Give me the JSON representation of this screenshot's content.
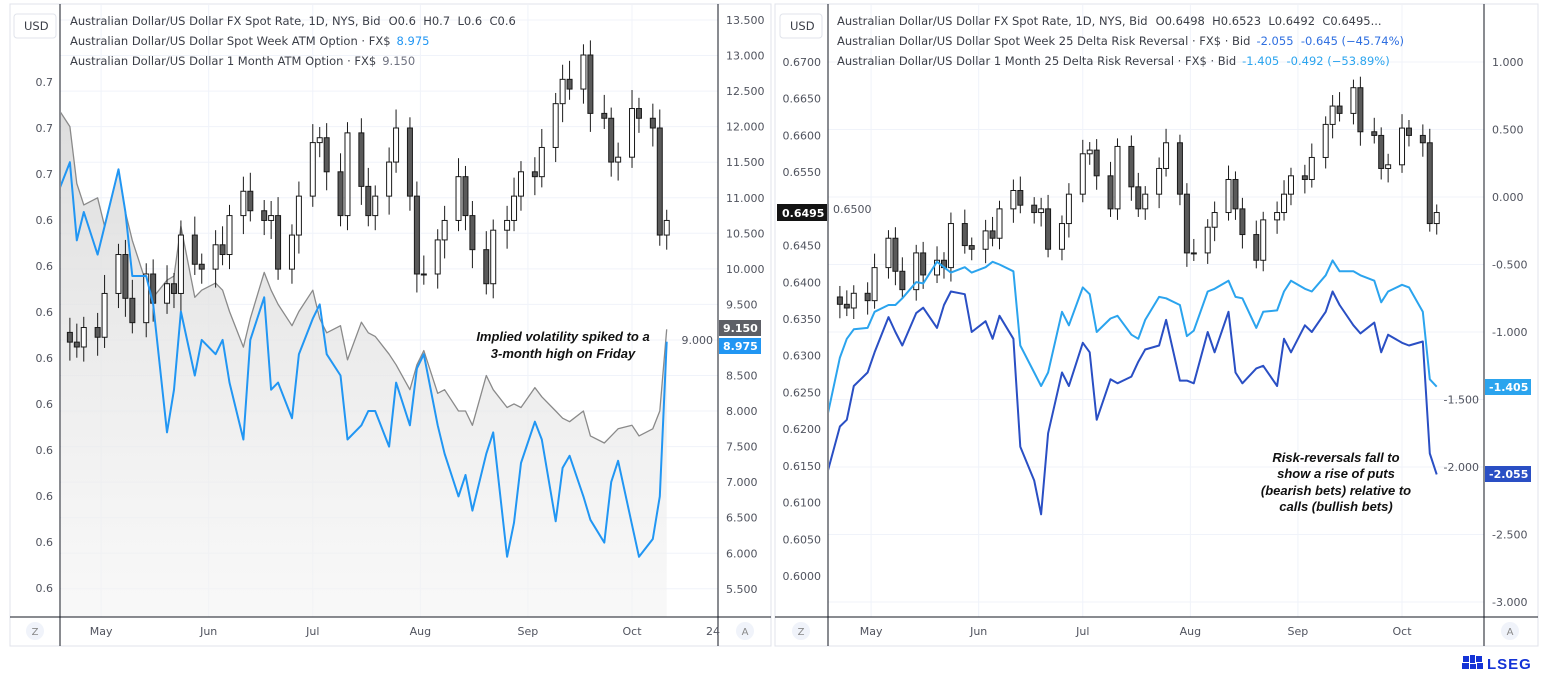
{
  "colors": {
    "week_atm": "#2196f3",
    "month_atm": "#8a8a8a",
    "week_rr": "#2a4fc4",
    "month_rr": "#2ba4ee",
    "candle_up": "#ffffff",
    "candle_down": "#5a5a5a",
    "brand": "#1433d6"
  },
  "left_panel": {
    "currency_button": "USD",
    "legend": [
      {
        "name": "Australian Dollar/US Dollar FX Spot Rate, 1D, NYS, Bid",
        "values": "O0.6  H0.7  L0.6  C0.6"
      },
      {
        "name": "Australian Dollar/US Dollar Spot Week ATM Option · FX$",
        "values": "8.975"
      },
      {
        "name": "Australian Dollar/US Dollar 1 Month ATM Option · FX$",
        "values": "9.150"
      }
    ],
    "left_axis_labels": [
      "0.7",
      "0.7",
      "0.7",
      "0.6",
      "0.6",
      "0.6",
      "0.6",
      "0.6",
      "0.6",
      "0.6",
      "0.6",
      "0.6"
    ],
    "right_axis_labels": [
      "13.500",
      "13.000",
      "12.500",
      "12.000",
      "11.500",
      "11.000",
      "10.500",
      "10.000",
      "9.500",
      "9.000",
      "8.500",
      "8.000",
      "7.500",
      "7.000",
      "6.500",
      "6.000",
      "5.500"
    ],
    "price_tags": {
      "month_atm": "9.150",
      "week_atm": "8.975"
    },
    "annotation": [
      "Implied volatility spiked to a",
      "3-month high on Friday"
    ],
    "clipped_tick_label": "24",
    "zoom_button": "Z",
    "auto_button": "A"
  },
  "right_panel": {
    "currency_button": "USD",
    "legend": [
      {
        "name": "Australian Dollar/US Dollar FX Spot Rate, 1D, NYS, Bid",
        "values": "O0.6498  H0.6523  L0.6492  C0.6495..."
      },
      {
        "name": "Australian Dollar/US Dollar Spot Week 25 Delta Risk Reversal · FX$ · Bid",
        "values": "-2.055  -0.645 (−45.74%)"
      },
      {
        "name": "Australian Dollar/US Dollar 1 Month 25 Delta Risk Reversal · FX$ · Bid",
        "values": "-1.405  -0.492 (−53.89%)"
      }
    ],
    "left_axis_labels": [
      "0.6700",
      "0.6650",
      "0.6600",
      "0.6550",
      "0.6500",
      "0.6450",
      "0.6400",
      "0.6350",
      "0.6300",
      "0.6250",
      "0.6200",
      "0.6150",
      "0.6100",
      "0.6050",
      "0.6000"
    ],
    "right_axis_labels": [
      "1.000",
      "0.500",
      "0.000",
      "-0.500",
      "-1.000",
      "-1.500",
      "-2.000",
      "-2.500",
      "-3.000"
    ],
    "price_tags": {
      "spot": "0.6495",
      "month_rr": "-1.405",
      "week_rr": "-2.055"
    },
    "annotation": [
      "Risk-reversals fall to",
      "show a rise of puts",
      "(bearish bets) relative to",
      "calls (bullish bets)"
    ],
    "zoom_button": "Z",
    "auto_button": "A"
  },
  "logo": {
    "text": "LSEG"
  },
  "chart_data": [
    {
      "type": "candlestick+line",
      "x_tick_labels": [
        "May",
        "Jun",
        "Jul",
        "Aug",
        "Sep",
        "Oct"
      ],
      "x_ticks": [
        "2024-05-01",
        "2024-06-01",
        "2024-07-01",
        "2024-08-01",
        "2024-09-01",
        "2024-10-01"
      ],
      "right_ylim": [
        5.5,
        13.5
      ],
      "grid": true,
      "legend": "top-left",
      "x": [
        "2024-04-18",
        "2024-04-22",
        "2024-04-24",
        "2024-04-26",
        "2024-04-30",
        "2024-05-02",
        "2024-05-06",
        "2024-05-08",
        "2024-05-10",
        "2024-05-14",
        "2024-05-16",
        "2024-05-20",
        "2024-05-22",
        "2024-05-24",
        "2024-05-28",
        "2024-05-30",
        "2024-06-03",
        "2024-06-05",
        "2024-06-07",
        "2024-06-11",
        "2024-06-13",
        "2024-06-17",
        "2024-06-19",
        "2024-06-21",
        "2024-06-25",
        "2024-06-27",
        "2024-07-01",
        "2024-07-03",
        "2024-07-05",
        "2024-07-09",
        "2024-07-11",
        "2024-07-15",
        "2024-07-17",
        "2024-07-19",
        "2024-07-23",
        "2024-07-25",
        "2024-07-29",
        "2024-07-31",
        "2024-08-02",
        "2024-08-06",
        "2024-08-08",
        "2024-08-12",
        "2024-08-14",
        "2024-08-16",
        "2024-08-20",
        "2024-08-22",
        "2024-08-26",
        "2024-08-28",
        "2024-08-30",
        "2024-09-03",
        "2024-09-05",
        "2024-09-09",
        "2024-09-11",
        "2024-09-13",
        "2024-09-17",
        "2024-09-19",
        "2024-09-23",
        "2024-09-25",
        "2024-09-27",
        "2024-10-01",
        "2024-10-03",
        "2024-10-07",
        "2024-10-09",
        "2024-10-11"
      ],
      "series": [
        {
          "name": "Australian Dollar/US Dollar FX Spot Rate, 1D, NYS, Bid",
          "kind": "candles",
          "axis": "left",
          "close": [
            0.638,
            0.637,
            0.6365,
            0.6385,
            0.6375,
            0.642,
            0.646,
            0.6415,
            0.639,
            0.644,
            0.641,
            0.643,
            0.642,
            0.648,
            0.645,
            0.6445,
            0.647,
            0.646,
            0.65,
            0.6525,
            0.6505,
            0.6495,
            0.65,
            0.6445,
            0.648,
            0.652,
            0.6575,
            0.658,
            0.6545,
            0.65,
            0.6585,
            0.653,
            0.65,
            0.652,
            0.6555,
            0.659,
            0.652,
            0.644,
            0.644,
            0.6475,
            0.6495,
            0.654,
            0.65,
            0.6465,
            0.643,
            0.6485,
            0.6495,
            0.652,
            0.6545,
            0.654,
            0.657,
            0.6615,
            0.664,
            0.663,
            0.6665,
            0.6605,
            0.66,
            0.6555,
            0.656,
            0.661,
            0.66,
            0.659,
            0.648,
            0.6495
          ]
        },
        {
          "name": "Australian Dollar/US Dollar Spot Week ATM Option · FX$",
          "kind": "line",
          "axis": "right",
          "values": [
            11.0,
            11.5,
            10.4,
            10.8,
            10.2,
            10.6,
            11.4,
            10.8,
            9.9,
            9.9,
            9.5,
            7.7,
            8.3,
            9.4,
            8.5,
            9.0,
            8.8,
            9.0,
            8.4,
            7.6,
            9.0,
            9.6,
            8.3,
            8.4,
            7.9,
            8.8,
            9.3,
            9.5,
            8.8,
            8.5,
            7.6,
            7.8,
            8.0,
            8.0,
            7.5,
            8.4,
            7.8,
            8.6,
            8.8,
            7.8,
            7.4,
            6.8,
            7.1,
            6.6,
            7.4,
            7.7,
            5.95,
            6.43,
            7.27,
            7.85,
            7.6,
            6.45,
            7.2,
            7.37,
            6.8,
            6.47,
            6.15,
            7.0,
            7.3,
            6.4,
            5.95,
            6.2,
            6.8,
            8.975
          ]
        },
        {
          "name": "Australian Dollar/US Dollar 1 Month ATM Option · FX$",
          "kind": "area",
          "axis": "right",
          "values": [
            12.3,
            12.0,
            11.2,
            10.9,
            11.0,
            10.6,
            11.4,
            10.8,
            10.4,
            9.8,
            9.6,
            9.84,
            9.9,
            10.6,
            9.6,
            9.7,
            9.8,
            9.7,
            9.4,
            8.9,
            9.3,
            9.95,
            9.7,
            9.5,
            9.2,
            9.4,
            9.7,
            9.3,
            9.1,
            9.2,
            8.72,
            9.25,
            9.1,
            9.05,
            8.8,
            8.65,
            8.3,
            8.65,
            8.85,
            8.25,
            8.3,
            8.0,
            8.0,
            7.8,
            8.5,
            8.3,
            8.05,
            8.1,
            8.05,
            8.33,
            8.2,
            8.0,
            7.9,
            7.85,
            8.0,
            7.65,
            7.55,
            7.65,
            7.75,
            7.8,
            7.65,
            7.75,
            8.0,
            9.15
          ]
        }
      ]
    },
    {
      "type": "candlestick+line",
      "x_tick_labels": [
        "May",
        "Jun",
        "Jul",
        "Aug",
        "Sep",
        "Oct"
      ],
      "x_ticks": [
        "2024-05-01",
        "2024-06-01",
        "2024-07-01",
        "2024-08-01",
        "2024-09-01",
        "2024-10-01"
      ],
      "left_ylim": [
        0.6,
        0.67
      ],
      "right_ylim": [
        -3.0,
        1.0
      ],
      "grid": true,
      "legend": "top-left",
      "x": [
        "2024-04-18",
        "2024-04-22",
        "2024-04-24",
        "2024-04-26",
        "2024-04-30",
        "2024-05-02",
        "2024-05-06",
        "2024-05-08",
        "2024-05-10",
        "2024-05-14",
        "2024-05-16",
        "2024-05-20",
        "2024-05-22",
        "2024-05-24",
        "2024-05-28",
        "2024-05-30",
        "2024-06-03",
        "2024-06-05",
        "2024-06-07",
        "2024-06-11",
        "2024-06-13",
        "2024-06-17",
        "2024-06-19",
        "2024-06-21",
        "2024-06-25",
        "2024-06-27",
        "2024-07-01",
        "2024-07-03",
        "2024-07-05",
        "2024-07-09",
        "2024-07-11",
        "2024-07-15",
        "2024-07-17",
        "2024-07-19",
        "2024-07-23",
        "2024-07-25",
        "2024-07-29",
        "2024-07-31",
        "2024-08-02",
        "2024-08-06",
        "2024-08-08",
        "2024-08-12",
        "2024-08-14",
        "2024-08-16",
        "2024-08-20",
        "2024-08-22",
        "2024-08-26",
        "2024-08-28",
        "2024-08-30",
        "2024-09-03",
        "2024-09-05",
        "2024-09-09",
        "2024-09-11",
        "2024-09-13",
        "2024-09-17",
        "2024-09-19",
        "2024-09-23",
        "2024-09-25",
        "2024-09-27",
        "2024-10-01",
        "2024-10-03",
        "2024-10-07",
        "2024-10-09",
        "2024-10-11"
      ],
      "series": [
        {
          "name": "Australian Dollar/US Dollar FX Spot Rate, 1D, NYS, Bid",
          "kind": "candles",
          "axis": "left",
          "close": [
            0.638,
            0.637,
            0.6365,
            0.6385,
            0.6375,
            0.642,
            0.646,
            0.6415,
            0.639,
            0.644,
            0.641,
            0.643,
            0.642,
            0.648,
            0.645,
            0.6445,
            0.647,
            0.646,
            0.65,
            0.6525,
            0.6505,
            0.6495,
            0.65,
            0.6445,
            0.648,
            0.652,
            0.6575,
            0.658,
            0.6545,
            0.65,
            0.6585,
            0.653,
            0.65,
            0.652,
            0.6555,
            0.659,
            0.652,
            0.644,
            0.644,
            0.6475,
            0.6495,
            0.654,
            0.65,
            0.6465,
            0.643,
            0.6485,
            0.6495,
            0.652,
            0.6545,
            0.654,
            0.657,
            0.6615,
            0.664,
            0.663,
            0.6665,
            0.6605,
            0.66,
            0.6555,
            0.656,
            0.661,
            0.66,
            0.659,
            0.648,
            0.6495
          ]
        },
        {
          "name": "Australian Dollar/US Dollar Spot Week 25 Delta Risk Reversal · FX$ · Bid",
          "kind": "line",
          "axis": "right",
          "values": [
            -2.08,
            -1.7,
            -1.65,
            -1.4,
            -1.3,
            -1.15,
            -0.89,
            -1.0,
            -1.1,
            -0.86,
            -0.82,
            -0.97,
            -0.8,
            -0.7,
            -0.72,
            -1.0,
            -0.92,
            -1.05,
            -0.88,
            -1.05,
            -1.85,
            -2.1,
            -2.35,
            -1.75,
            -1.3,
            -1.4,
            -1.08,
            -1.15,
            -1.65,
            -1.35,
            -1.38,
            -1.33,
            -1.22,
            -1.13,
            -1.1,
            -0.91,
            -1.36,
            -1.36,
            -1.38,
            -1.0,
            -1.15,
            -0.85,
            -1.3,
            -1.38,
            -1.27,
            -1.25,
            -1.4,
            -1.05,
            -1.15,
            -0.95,
            -1.0,
            -0.85,
            -0.7,
            -0.8,
            -0.95,
            -1.01,
            -0.93,
            -1.15,
            -1.02,
            -1.08,
            -1.1,
            -1.07,
            -1.9,
            -2.055
          ]
        },
        {
          "name": "Australian Dollar/US Dollar 1 Month 25 Delta Risk Reversal · FX$ · Bid",
          "kind": "line",
          "axis": "right",
          "values": [
            -1.67,
            -1.19,
            -1.05,
            -0.98,
            -0.97,
            -0.85,
            -0.8,
            -0.8,
            -0.75,
            -0.63,
            -0.64,
            -0.48,
            -0.52,
            -0.56,
            -0.52,
            -0.56,
            -0.52,
            -0.48,
            -0.5,
            -0.55,
            -1.1,
            -1.3,
            -1.4,
            -1.3,
            -0.85,
            -0.95,
            -0.67,
            -0.72,
            -1.0,
            -0.9,
            -0.88,
            -1.02,
            -1.05,
            -0.91,
            -0.74,
            -0.75,
            -0.8,
            -1.03,
            -0.99,
            -0.7,
            -0.68,
            -0.62,
            -0.74,
            -0.75,
            -0.97,
            -0.85,
            -0.84,
            -0.7,
            -0.62,
            -0.68,
            -0.7,
            -0.58,
            -0.47,
            -0.55,
            -0.55,
            -0.58,
            -0.62,
            -0.78,
            -0.7,
            -0.65,
            -0.67,
            -0.85,
            -1.35,
            -1.405
          ]
        }
      ]
    }
  ]
}
